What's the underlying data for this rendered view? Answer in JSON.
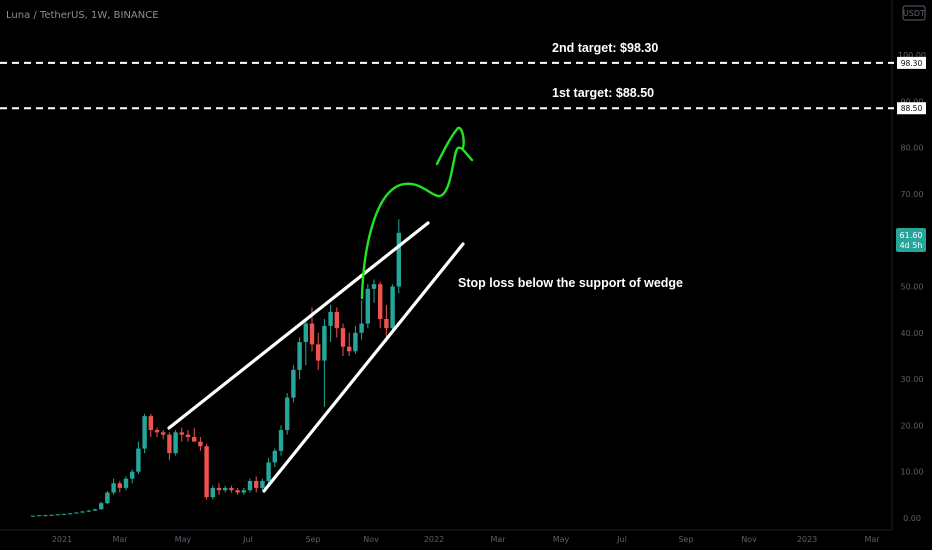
{
  "chart_data": {
    "type": "candlestick",
    "title": "Luna / TetherUS, 1W, BINANCE",
    "currency_badge": "USDT",
    "x_tick_labels": [
      "2021",
      "Mar",
      "May",
      "Jul",
      "Sep",
      "Nov",
      "2022",
      "Mar",
      "May",
      "Jul",
      "Sep",
      "Nov",
      "2023",
      "Mar"
    ],
    "y_tick_labels": [
      "100.00",
      "90.00",
      "80.00",
      "70.00",
      "60.00",
      "50.00",
      "40.00",
      "30.00",
      "20.00",
      "10.00",
      "0.00"
    ],
    "y_ticks": [
      100,
      90,
      80,
      70,
      60,
      50,
      40,
      30,
      20,
      10,
      0
    ],
    "ylim": [
      0,
      104
    ],
    "colors": {
      "up": "#26a69a",
      "down": "#ef5350",
      "background": "#000000",
      "annotation_curve": "#22e322"
    },
    "candles": [
      {
        "o": 0.4,
        "h": 0.5,
        "l": 0.3,
        "c": 0.5
      },
      {
        "o": 0.5,
        "h": 0.6,
        "l": 0.4,
        "c": 0.6
      },
      {
        "o": 0.6,
        "h": 0.7,
        "l": 0.5,
        "c": 0.6
      },
      {
        "o": 0.6,
        "h": 0.7,
        "l": 0.5,
        "c": 0.7
      },
      {
        "o": 0.7,
        "h": 0.8,
        "l": 0.6,
        "c": 0.8
      },
      {
        "o": 0.8,
        "h": 0.9,
        "l": 0.7,
        "c": 0.9
      },
      {
        "o": 0.9,
        "h": 1.1,
        "l": 0.8,
        "c": 1.0
      },
      {
        "o": 1.0,
        "h": 1.2,
        "l": 0.9,
        "c": 1.2
      },
      {
        "o": 1.2,
        "h": 1.5,
        "l": 1.1,
        "c": 1.4
      },
      {
        "o": 1.4,
        "h": 1.7,
        "l": 1.3,
        "c": 1.6
      },
      {
        "o": 1.6,
        "h": 2.0,
        "l": 1.5,
        "c": 1.9
      },
      {
        "o": 1.9,
        "h": 3.5,
        "l": 1.8,
        "c": 3.2
      },
      {
        "o": 3.2,
        "h": 5.8,
        "l": 3.0,
        "c": 5.5
      },
      {
        "o": 5.5,
        "h": 8.5,
        "l": 5.0,
        "c": 7.5
      },
      {
        "o": 7.5,
        "h": 8.0,
        "l": 5.5,
        "c": 6.5
      },
      {
        "o": 6.5,
        "h": 9.0,
        "l": 6.0,
        "c": 8.5
      },
      {
        "o": 8.5,
        "h": 10.5,
        "l": 7.5,
        "c": 10.0
      },
      {
        "o": 10.0,
        "h": 16.5,
        "l": 9.5,
        "c": 15.0
      },
      {
        "o": 15.0,
        "h": 22.5,
        "l": 14.0,
        "c": 22.0
      },
      {
        "o": 22.0,
        "h": 22.5,
        "l": 17.5,
        "c": 19.0
      },
      {
        "o": 19.0,
        "h": 19.5,
        "l": 17.5,
        "c": 18.5
      },
      {
        "o": 18.5,
        "h": 19.0,
        "l": 17.0,
        "c": 18.0
      },
      {
        "o": 18.0,
        "h": 18.5,
        "l": 12.5,
        "c": 14.0
      },
      {
        "o": 14.0,
        "h": 19.0,
        "l": 13.5,
        "c": 18.5
      },
      {
        "o": 18.5,
        "h": 19.5,
        "l": 16.5,
        "c": 18.0
      },
      {
        "o": 18.0,
        "h": 19.0,
        "l": 16.5,
        "c": 17.5
      },
      {
        "o": 17.5,
        "h": 19.5,
        "l": 16.5,
        "c": 16.5
      },
      {
        "o": 16.5,
        "h": 17.5,
        "l": 14.5,
        "c": 15.5
      },
      {
        "o": 15.5,
        "h": 16.0,
        "l": 4.0,
        "c": 4.5
      },
      {
        "o": 4.5,
        "h": 7.0,
        "l": 4.0,
        "c": 6.5
      },
      {
        "o": 6.5,
        "h": 7.5,
        "l": 5.0,
        "c": 6.0
      },
      {
        "o": 6.0,
        "h": 7.0,
        "l": 5.5,
        "c": 6.5
      },
      {
        "o": 6.5,
        "h": 7.0,
        "l": 5.5,
        "c": 6.0
      },
      {
        "o": 6.0,
        "h": 6.5,
        "l": 5.0,
        "c": 5.5
      },
      {
        "o": 5.5,
        "h": 6.5,
        "l": 5.0,
        "c": 6.0
      },
      {
        "o": 6.0,
        "h": 8.5,
        "l": 5.5,
        "c": 8.0
      },
      {
        "o": 8.0,
        "h": 9.0,
        "l": 5.5,
        "c": 6.5
      },
      {
        "o": 6.5,
        "h": 8.5,
        "l": 6.0,
        "c": 8.0
      },
      {
        "o": 8.0,
        "h": 13.0,
        "l": 7.5,
        "c": 12.0
      },
      {
        "o": 12.0,
        "h": 15.0,
        "l": 11.0,
        "c": 14.5
      },
      {
        "o": 14.5,
        "h": 20.0,
        "l": 13.5,
        "c": 19.0
      },
      {
        "o": 19.0,
        "h": 27.0,
        "l": 18.0,
        "c": 26.0
      },
      {
        "o": 26.0,
        "h": 33.0,
        "l": 25.0,
        "c": 32.0
      },
      {
        "o": 32.0,
        "h": 39.0,
        "l": 30.0,
        "c": 38.0
      },
      {
        "o": 38.0,
        "h": 43.0,
        "l": 33.0,
        "c": 42.0
      },
      {
        "o": 42.0,
        "h": 45.5,
        "l": 36.0,
        "c": 37.5
      },
      {
        "o": 37.5,
        "h": 40.0,
        "l": 32.0,
        "c": 34.0
      },
      {
        "o": 34.0,
        "h": 43.0,
        "l": 24.0,
        "c": 41.5
      },
      {
        "o": 41.5,
        "h": 46.0,
        "l": 38.0,
        "c": 44.5
      },
      {
        "o": 44.5,
        "h": 45.5,
        "l": 39.0,
        "c": 41.0
      },
      {
        "o": 41.0,
        "h": 42.0,
        "l": 35.0,
        "c": 37.0
      },
      {
        "o": 37.0,
        "h": 40.0,
        "l": 35.0,
        "c": 36.0
      },
      {
        "o": 36.0,
        "h": 41.5,
        "l": 35.5,
        "c": 40.0
      },
      {
        "o": 40.0,
        "h": 47.0,
        "l": 38.5,
        "c": 42.0
      },
      {
        "o": 42.0,
        "h": 50.5,
        "l": 41.0,
        "c": 49.5
      },
      {
        "o": 49.5,
        "h": 51.5,
        "l": 46.5,
        "c": 50.5
      },
      {
        "o": 50.5,
        "h": 51.0,
        "l": 41.0,
        "c": 43.0
      },
      {
        "o": 43.0,
        "h": 46.0,
        "l": 38.0,
        "c": 41.0
      },
      {
        "o": 41.0,
        "h": 50.5,
        "l": 40.0,
        "c": 50.0
      },
      {
        "o": 50.0,
        "h": 64.5,
        "l": 48.5,
        "c": 61.6
      }
    ],
    "horizontal_levels": [
      {
        "label": "2nd target: $98.30",
        "value": 98.3,
        "tag": "98.30"
      },
      {
        "label": "1st target: $88.50",
        "value": 88.5,
        "tag": "88.50"
      }
    ],
    "last_price": {
      "value": 61.6,
      "label": "61.60",
      "countdown": "4d 5h"
    },
    "annotations": [
      {
        "text": "Stop loss below the support of wedge"
      }
    ]
  }
}
